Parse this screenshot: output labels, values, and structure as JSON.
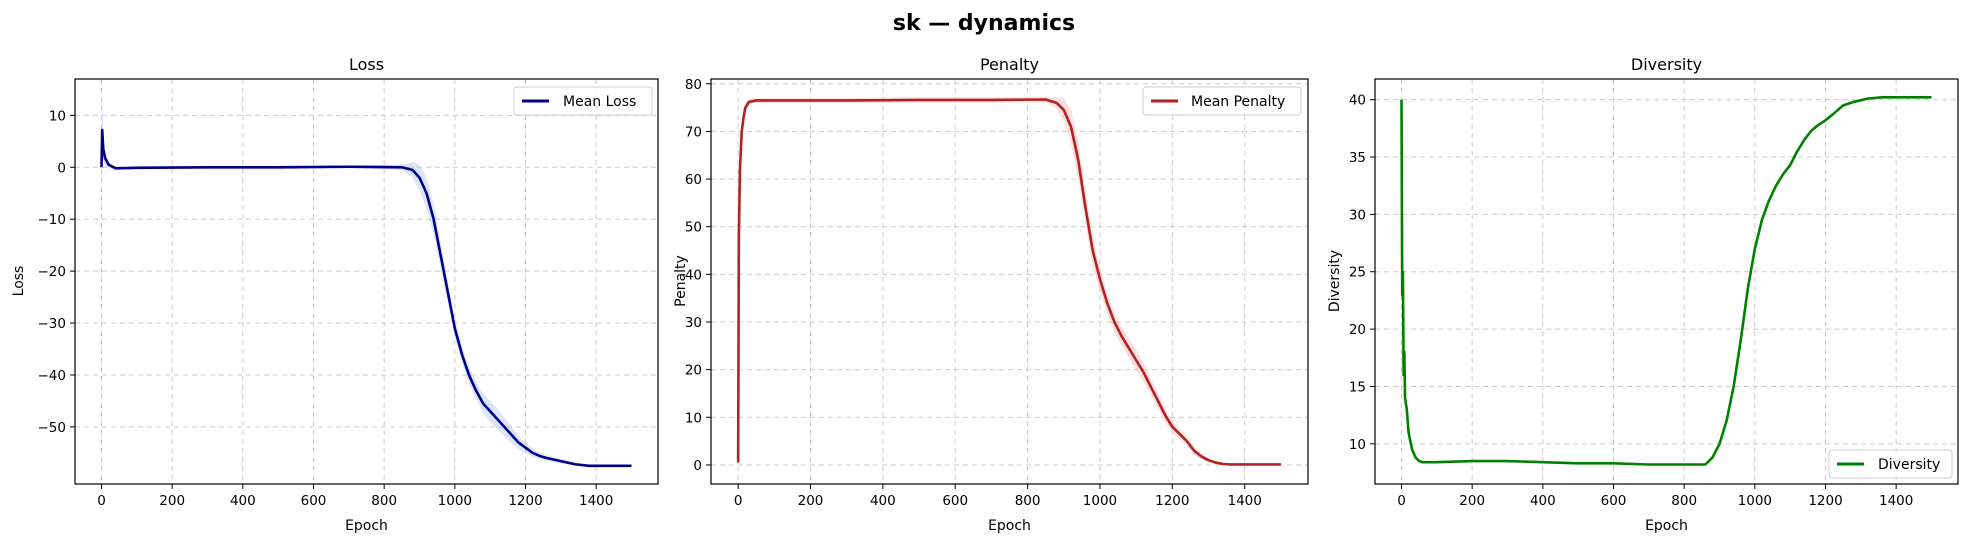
{
  "figure": {
    "suptitle": "sk — dynamics"
  },
  "chart_data": [
    {
      "type": "line",
      "title": "Loss",
      "xlabel": "Epoch",
      "ylabel": "Loss",
      "xlim": [
        -75,
        1575
      ],
      "ylim": [
        -61,
        17
      ],
      "xticks": [
        0,
        200,
        400,
        600,
        800,
        1000,
        1200,
        1400
      ],
      "yticks": [
        10,
        0,
        -10,
        -20,
        -30,
        -40,
        -50
      ],
      "ytick_labels": [
        "10",
        "0",
        "−10",
        "−20",
        "−30",
        "−40",
        "−50"
      ],
      "grid": true,
      "legend_position": "upper right",
      "series": [
        {
          "name": "Mean Loss",
          "color": "#00008b",
          "band_color": "#aec7f0",
          "x": [
            0,
            2,
            5,
            10,
            20,
            40,
            100,
            300,
            500,
            700,
            850,
            880,
            900,
            920,
            940,
            960,
            980,
            1000,
            1020,
            1040,
            1060,
            1080,
            1100,
            1120,
            1140,
            1160,
            1180,
            1200,
            1220,
            1240,
            1260,
            1300,
            1340,
            1380,
            1420,
            1460,
            1500
          ],
          "values": [
            0,
            7.2,
            3.5,
            1.8,
            0.5,
            -0.2,
            -0.1,
            0,
            0,
            0.1,
            0,
            -0.5,
            -2,
            -5,
            -10,
            -17,
            -24,
            -31,
            -36,
            -40,
            -43,
            -45.5,
            -47,
            -48.5,
            -50,
            -51.5,
            -53,
            -54,
            -55,
            -55.6,
            -56,
            -56.6,
            -57.2,
            -57.5,
            -57.5,
            -57.5,
            -57.5
          ],
          "band": [
            0,
            6,
            2,
            1.5,
            0.6,
            0.3,
            0.3,
            0.3,
            0.3,
            0.3,
            0.5,
            1.5,
            2.5,
            3,
            3,
            2.5,
            2,
            1.8,
            1.6,
            1.6,
            1.6,
            1.8,
            2,
            2,
            1.8,
            1.6,
            1.3,
            1,
            0.8,
            0.6,
            0.5,
            0.4,
            0.3,
            0.2,
            0.2,
            0.2,
            0.2
          ]
        }
      ]
    },
    {
      "type": "line",
      "title": "Penalty",
      "xlabel": "Epoch",
      "ylabel": "Penalty",
      "xlim": [
        -75,
        1575
      ],
      "ylim": [
        -4,
        81
      ],
      "xticks": [
        0,
        200,
        400,
        600,
        800,
        1000,
        1200,
        1400
      ],
      "yticks": [
        0,
        10,
        20,
        30,
        40,
        50,
        60,
        70,
        80
      ],
      "ytick_labels": [
        "0",
        "10",
        "20",
        "30",
        "40",
        "50",
        "60",
        "70",
        "80"
      ],
      "grid": true,
      "legend_position": "upper right",
      "series": [
        {
          "name": "Mean Penalty",
          "color": "#b22222",
          "band_color": "#f7b6b6",
          "x": [
            0,
            2,
            5,
            10,
            15,
            20,
            30,
            50,
            100,
            300,
            500,
            700,
            850,
            880,
            900,
            920,
            940,
            960,
            980,
            1000,
            1020,
            1040,
            1060,
            1080,
            1100,
            1120,
            1140,
            1160,
            1180,
            1200,
            1220,
            1240,
            1260,
            1280,
            1300,
            1320,
            1340,
            1360,
            1380,
            1400,
            1420,
            1440,
            1460,
            1500
          ],
          "values": [
            0.5,
            48,
            62,
            70,
            73,
            75,
            76.2,
            76.5,
            76.5,
            76.5,
            76.6,
            76.6,
            76.7,
            76,
            74.5,
            71,
            64,
            54,
            45,
            39,
            34,
            30,
            27,
            24.5,
            22,
            19.5,
            16.5,
            13.5,
            10.5,
            8,
            6.5,
            5,
            3,
            1.8,
            1,
            0.5,
            0.2,
            0.1,
            0.1,
            0.1,
            0.1,
            0.1,
            0.1,
            0.1
          ],
          "band": [
            0,
            4,
            3,
            2,
            1.5,
            1,
            0.6,
            0.5,
            0.5,
            0.5,
            0.5,
            0.5,
            0.6,
            1.2,
            2.5,
            3.5,
            4,
            3.5,
            3,
            2.5,
            2.2,
            2,
            2,
            2,
            2.2,
            2,
            1.8,
            1.6,
            1.4,
            1.2,
            1,
            1,
            0.9,
            0.6,
            0.4,
            0.2,
            0.1,
            0,
            0,
            0,
            0,
            0,
            0,
            0
          ]
        }
      ]
    },
    {
      "type": "line",
      "title": "Diversity",
      "xlabel": "Epoch",
      "ylabel": "Diversity",
      "xlim": [
        -75,
        1575
      ],
      "ylim": [
        6.5,
        41.8
      ],
      "xticks": [
        0,
        200,
        400,
        600,
        800,
        1000,
        1200,
        1400
      ],
      "yticks": [
        10,
        15,
        20,
        25,
        30,
        35,
        40
      ],
      "ytick_labels": [
        "10",
        "15",
        "20",
        "25",
        "30",
        "35",
        "40"
      ],
      "grid": true,
      "legend_position": "lower right",
      "series": [
        {
          "name": "Diversity",
          "color": "#008000",
          "x": [
            0,
            2,
            4,
            6,
            8,
            10,
            15,
            20,
            30,
            40,
            50,
            60,
            100,
            200,
            300,
            400,
            500,
            600,
            700,
            800,
            860,
            880,
            900,
            920,
            940,
            960,
            980,
            1000,
            1020,
            1040,
            1060,
            1080,
            1100,
            1120,
            1140,
            1160,
            1180,
            1200,
            1220,
            1250,
            1280,
            1320,
            1360,
            1400,
            1450,
            1500
          ],
          "values": [
            40,
            23,
            25,
            16,
            18,
            14,
            13,
            11,
            9.5,
            8.8,
            8.5,
            8.4,
            8.4,
            8.5,
            8.5,
            8.4,
            8.3,
            8.3,
            8.2,
            8.2,
            8.2,
            8.8,
            10,
            12,
            15,
            19,
            23.5,
            27,
            29.5,
            31.2,
            32.5,
            33.5,
            34.3,
            35.5,
            36.5,
            37.3,
            37.8,
            38.2,
            38.7,
            39.5,
            39.8,
            40.1,
            40.2,
            40.2,
            40.2,
            40.2
          ]
        }
      ]
    }
  ]
}
